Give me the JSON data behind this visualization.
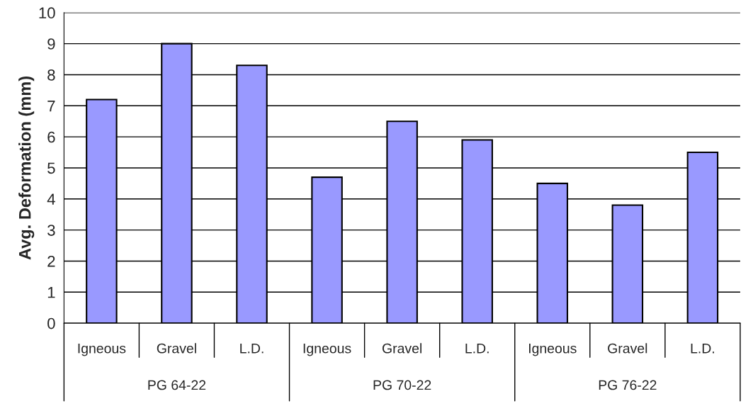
{
  "chart_data": {
    "type": "bar",
    "ylabel": "Avg. Deformation (mm)",
    "categories": [
      "Igneous",
      "Gravel",
      "L.D.",
      "Igneous",
      "Gravel",
      "L.D.",
      "Igneous",
      "Gravel",
      "L.D."
    ],
    "values": [
      7.2,
      9.0,
      8.3,
      4.7,
      6.5,
      5.9,
      4.5,
      3.8,
      5.5
    ],
    "color": "#9999ff",
    "annotations": [
      "PG 64-22",
      "PG 70-22",
      "PG 76-22"
    ],
    "ylim": [
      0,
      10
    ],
    "yticks": [
      0,
      1,
      2,
      3,
      4,
      5,
      6,
      7,
      8,
      9,
      10
    ],
    "grid": "y",
    "legend": false
  }
}
